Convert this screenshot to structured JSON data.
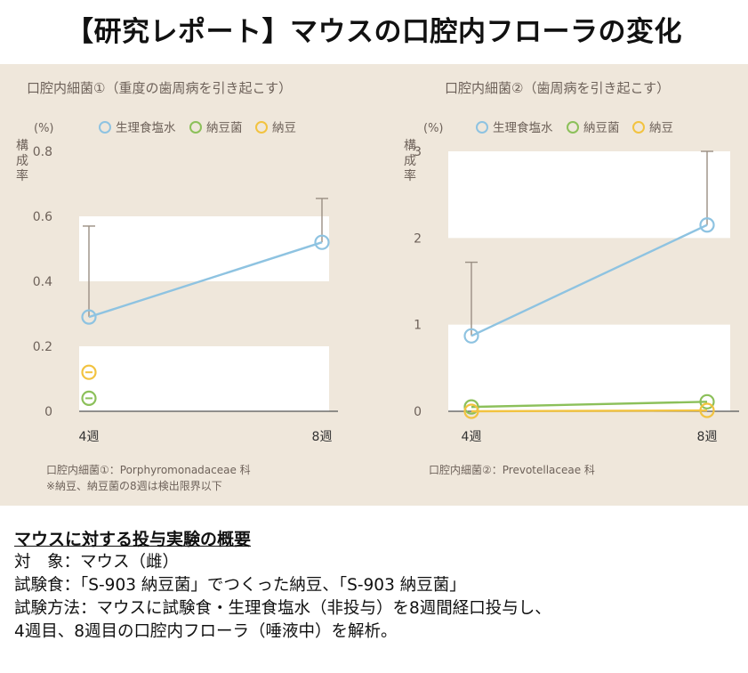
{
  "headline": "【研究レポート】マウスの口腔内フローラの変化",
  "colors": {
    "background": "#efe7db",
    "band": "#ffffff",
    "series_saline": "#8ec3e1",
    "series_natto_bacteria": "#8cc05a",
    "series_natto": "#f2c340",
    "error_bar": "#9a8f83",
    "text": "#6e625a"
  },
  "chart_data": [
    {
      "type": "line",
      "title": "口腔内細菌①（重度の歯周病を引き起こす）",
      "unit_label": "(%)",
      "ylabel": "構成率",
      "categories": [
        "4週",
        "8週"
      ],
      "ylim": [
        0,
        0.8
      ],
      "yticks": [
        "0",
        "0.2",
        "0.4",
        "0.6",
        "0.8"
      ],
      "legend": [
        "生理食塩水",
        "納豆菌",
        "納豆"
      ],
      "series": [
        {
          "name": "生理食塩水",
          "values": [
            0.29,
            0.52
          ],
          "error_upper": [
            0.57,
            0.655
          ]
        },
        {
          "name": "納豆菌",
          "values": [
            0.04,
            null
          ]
        },
        {
          "name": "納豆",
          "values": [
            0.12,
            null
          ]
        }
      ],
      "footnotes": [
        "口腔内細菌①：Porphyromonadaceae 科",
        "※納豆、納豆菌の8週は検出限界以下"
      ]
    },
    {
      "type": "line",
      "title": "口腔内細菌②（歯周病を引き起こす）",
      "unit_label": "(%)",
      "ylabel": "構成率",
      "categories": [
        "4週",
        "8週"
      ],
      "ylim": [
        0,
        3
      ],
      "yticks": [
        "0",
        "1",
        "2",
        "3"
      ],
      "legend": [
        "生理食塩水",
        "納豆菌",
        "納豆"
      ],
      "series": [
        {
          "name": "生理食塩水",
          "values": [
            0.87,
            2.15
          ],
          "error_upper": [
            1.72,
            3.0
          ]
        },
        {
          "name": "納豆菌",
          "values": [
            0.05,
            0.11
          ]
        },
        {
          "name": "納豆",
          "values": [
            0.0,
            0.01
          ]
        }
      ],
      "footnotes": [
        "口腔内細菌②：Prevotellaceae 科"
      ]
    }
  ],
  "summary": {
    "title": "マウスに対する投与実験の概要",
    "lines": [
      "対　象：マウス（雌）",
      "試験食：「S-903 納豆菌」でつくった納豆、「S-903 納豆菌」",
      "試験方法：マウスに試験食・生理食塩水（非投与）を8週間経口投与し、",
      "4週目、8週目の口腔内フローラ（唾液中）を解析。"
    ]
  }
}
